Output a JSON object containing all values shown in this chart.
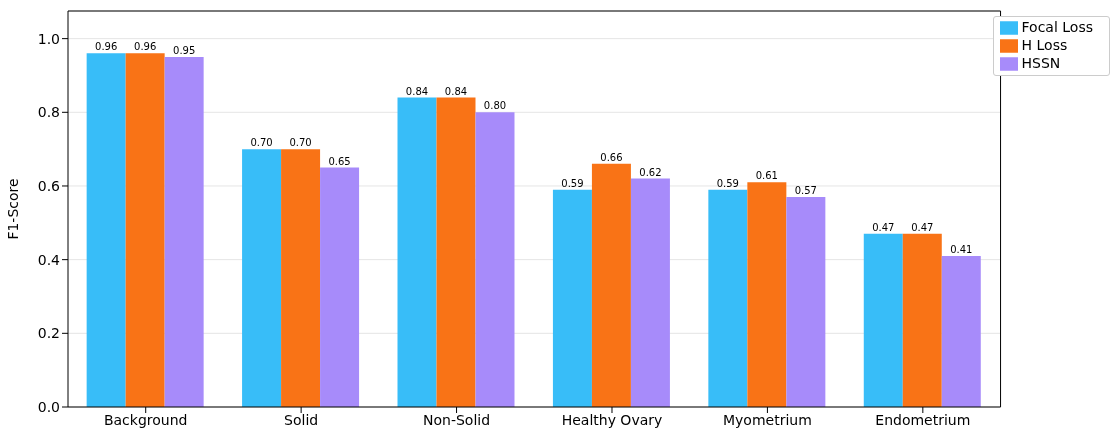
{
  "chart_data": {
    "type": "bar",
    "ylabel": "F1-Score",
    "categories": [
      "Background",
      "Solid",
      "Non-Solid",
      "Healthy Ovary",
      "Myometrium",
      "Endometrium"
    ],
    "series": [
      {
        "name": "Focal Loss",
        "color": "#38bdf8",
        "values": [
          0.96,
          0.7,
          0.84,
          0.59,
          0.59,
          0.47
        ],
        "value_labels": [
          "0.96",
          "0.70",
          "0.84",
          "0.59",
          "0.59",
          "0.47"
        ]
      },
      {
        "name": "H Loss",
        "color": "#f97316",
        "values": [
          0.96,
          0.7,
          0.84,
          0.66,
          0.61,
          0.47
        ],
        "value_labels": [
          "0.96",
          "0.70",
          "0.84",
          "0.66",
          "0.61",
          "0.47"
        ]
      },
      {
        "name": "HSSN",
        "color": "#a78bfa",
        "values": [
          0.95,
          0.65,
          0.8,
          0.62,
          0.57,
          0.41
        ],
        "value_labels": [
          "0.95",
          "0.65",
          "0.80",
          "0.62",
          "0.57",
          "0.41"
        ]
      }
    ],
    "ylim": [
      0,
      1.075
    ],
    "yticks": [
      {
        "value": 0,
        "label": "0.0"
      },
      {
        "value": 0.2,
        "label": "0.2"
      },
      {
        "value": 0.4,
        "label": "0.4"
      },
      {
        "value": 0.6,
        "label": "0.6"
      },
      {
        "value": 0.8,
        "label": "0.8"
      },
      {
        "value": 1,
        "label": "1.0"
      }
    ],
    "grid": "y",
    "legend": "top right"
  }
}
